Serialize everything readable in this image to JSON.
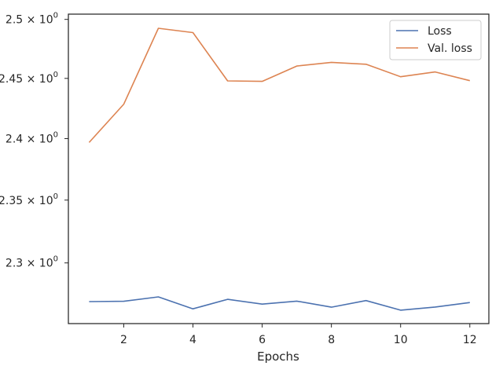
{
  "chart_data": {
    "type": "line",
    "title": "",
    "xlabel": "Epochs",
    "ylabel": "",
    "yscale": "log",
    "xlim": [
      0.4,
      12.55
    ],
    "ylim": [
      2.2527,
      2.5045
    ],
    "x_ticks": [
      2,
      4,
      6,
      8,
      10,
      12
    ],
    "y_ticks": [
      {
        "value": 2.3,
        "label": "2.3"
      },
      {
        "value": 2.35,
        "label": "2.35"
      },
      {
        "value": 2.4,
        "label": "2.4"
      },
      {
        "value": 2.45,
        "label": "2.45"
      },
      {
        "value": 2.5,
        "label": "2.5"
      }
    ],
    "y_tick_suffix": "× 10",
    "y_tick_exponent": "0",
    "grid": false,
    "legend_position": "top-right",
    "x": [
      1,
      2,
      3,
      4,
      5,
      6,
      7,
      8,
      9,
      10,
      11,
      12
    ],
    "series": [
      {
        "name": "Loss",
        "color": "#4c72b0",
        "values": [
          2.2697,
          2.27,
          2.2734,
          2.2641,
          2.2715,
          2.2678,
          2.2701,
          2.2654,
          2.2705,
          2.2631,
          2.2655,
          2.269
        ]
      },
      {
        "name": "Val. loss",
        "color": "#dd8452",
        "values": [
          2.3968,
          2.4285,
          2.4924,
          2.4887,
          2.4479,
          2.4475,
          2.4604,
          2.4635,
          2.4619,
          2.4514,
          2.4554,
          2.4481
        ]
      }
    ]
  }
}
